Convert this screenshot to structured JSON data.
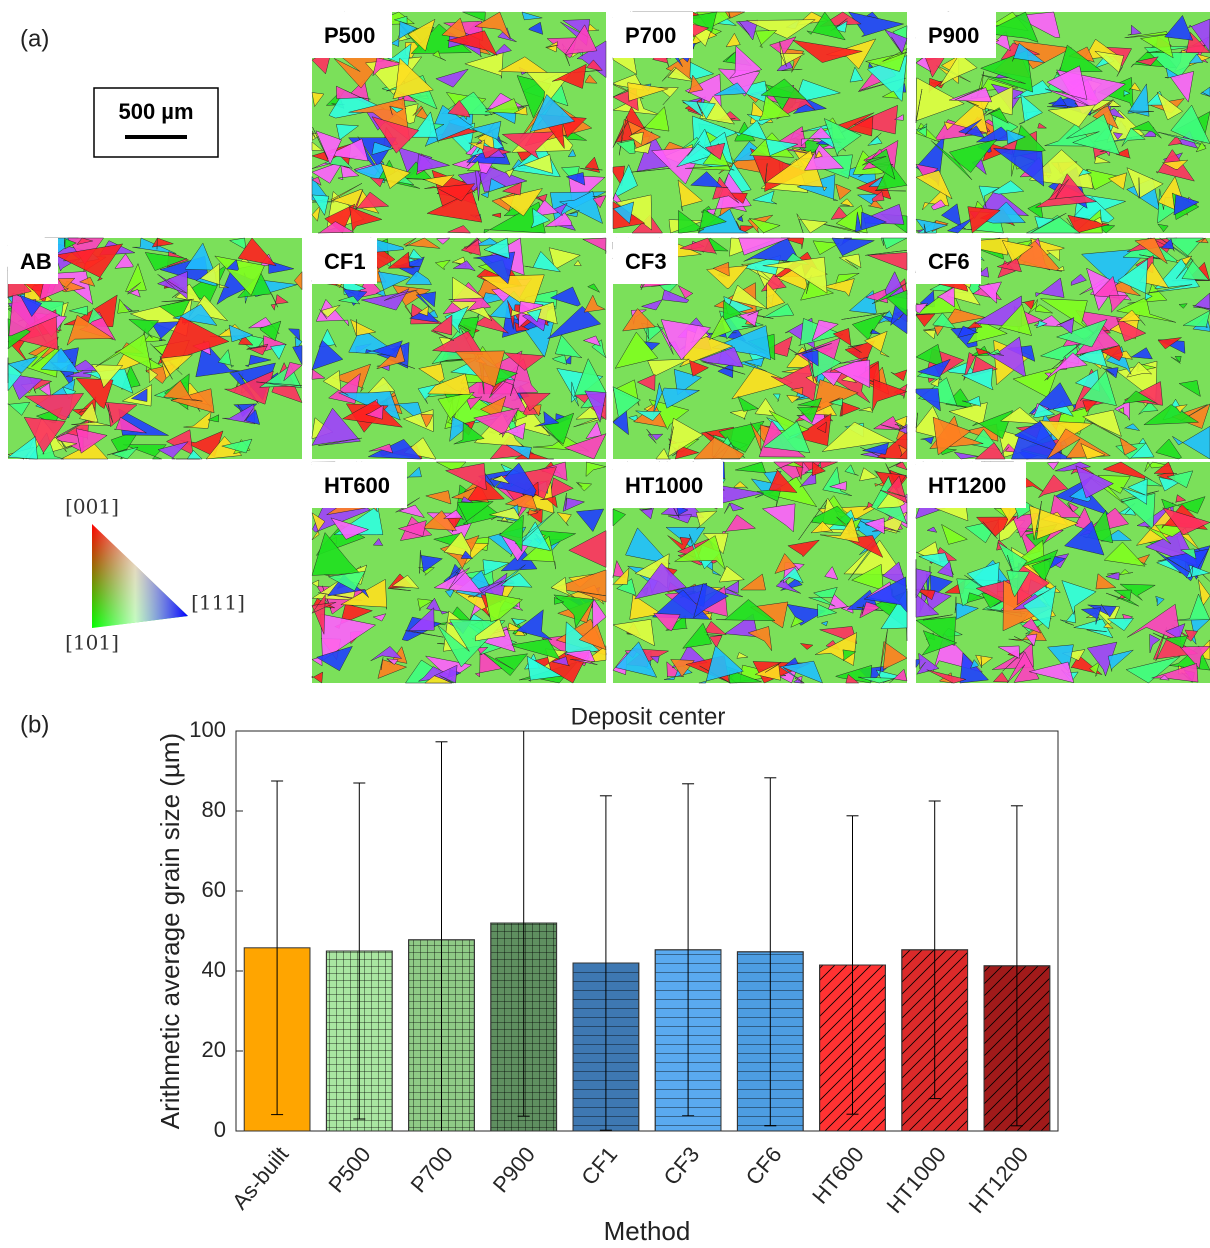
{
  "panel_a": {
    "label": "(a)",
    "scale_bar": "500 µm",
    "maps": [
      "P500",
      "P700",
      "P900",
      "AB",
      "CF1",
      "CF3",
      "CF6",
      "HT600",
      "HT1000",
      "HT1200"
    ],
    "ipf_labels": [
      "[001]",
      "[111]",
      "[101]"
    ]
  },
  "panel_b_label": "(b)",
  "chart_data": {
    "type": "bar",
    "title": "Deposit center",
    "x_label": "Method",
    "y_label": "Arithmetic average grain size (µm)",
    "categories": [
      "As-built",
      "P500",
      "P700",
      "P900",
      "CF1",
      "CF3",
      "CF6",
      "HT600",
      "HT1000",
      "HT1200"
    ],
    "values": [
      45.8,
      45,
      47.8,
      52,
      42,
      45.3,
      44.8,
      41.5,
      45.3,
      41.3
    ],
    "errors": [
      41.7,
      42,
      49.5,
      48.3,
      41.8,
      41.5,
      43.5,
      37.3,
      37.2,
      40
    ],
    "colors": [
      "#ffa500",
      "#a9e6a1",
      "#8fca86",
      "#5f8f60",
      "#3e78b2",
      "#5aaaf0",
      "#4d9de2",
      "#ff3232",
      "#dc2a2a",
      "#a11a1a"
    ],
    "hatches": [
      "none",
      "grid",
      "grid",
      "grid",
      "horizontal",
      "horizontal",
      "horizontal",
      "diagonal",
      "diagonal",
      "diagonal"
    ],
    "ylim": [
      0,
      100
    ],
    "yticks": [
      0,
      20,
      40,
      60,
      80,
      100
    ],
    "grid": false
  }
}
